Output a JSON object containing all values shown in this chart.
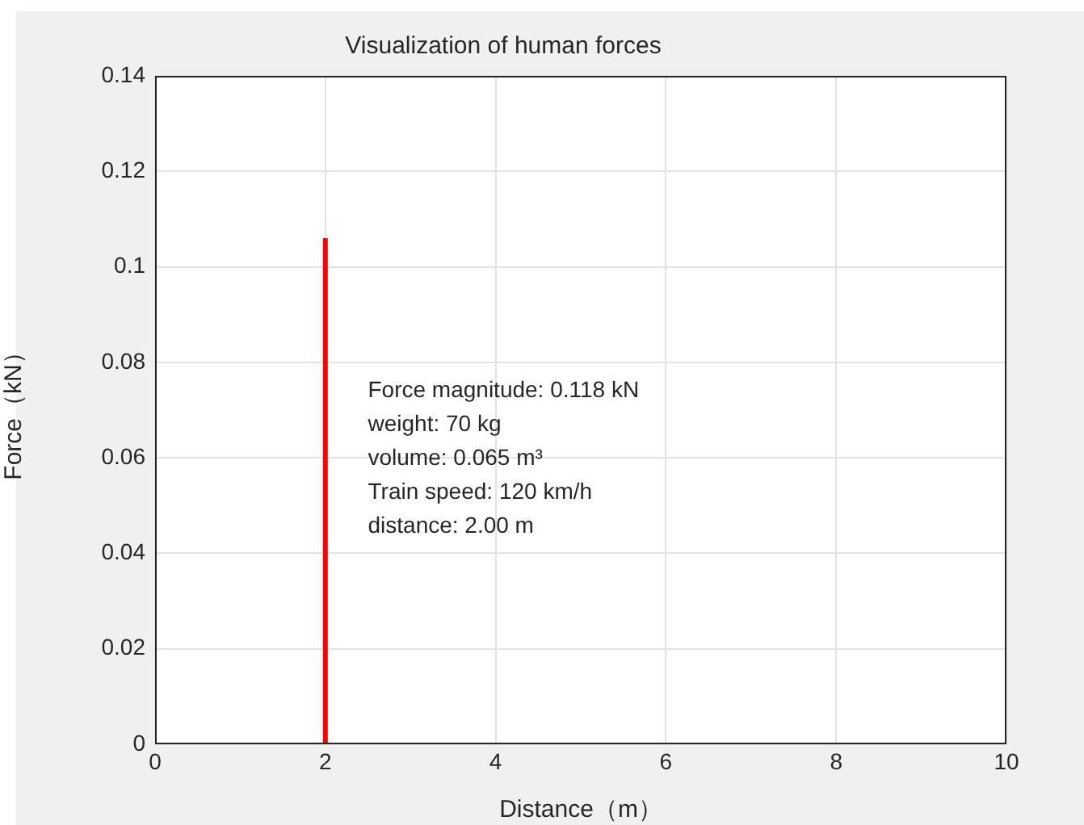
{
  "chart_data": {
    "type": "line",
    "title": "Visualization of human forces",
    "xlabel": "Distance（m）",
    "ylabel": "Force（kN）",
    "series": [
      {
        "color": "#ff0000",
        "x": [
          2,
          2
        ],
        "values": [
          0,
          0.106
        ]
      }
    ],
    "xlim": [
      0,
      10
    ],
    "xticks": [
      0,
      2,
      4,
      6,
      8,
      10
    ],
    "ylim": [
      0,
      0.14
    ],
    "yticks": [
      0,
      0.02,
      0.04,
      0.06,
      0.08,
      0.1,
      0.12,
      0.14
    ],
    "grid": true,
    "annotations": [
      "Force magnitude: 0.118 kN",
      "weight: 70 kg",
      "volume: 0.065 m³",
      "Train speed: 120 km/h",
      "distance: 2.00 m"
    ]
  }
}
